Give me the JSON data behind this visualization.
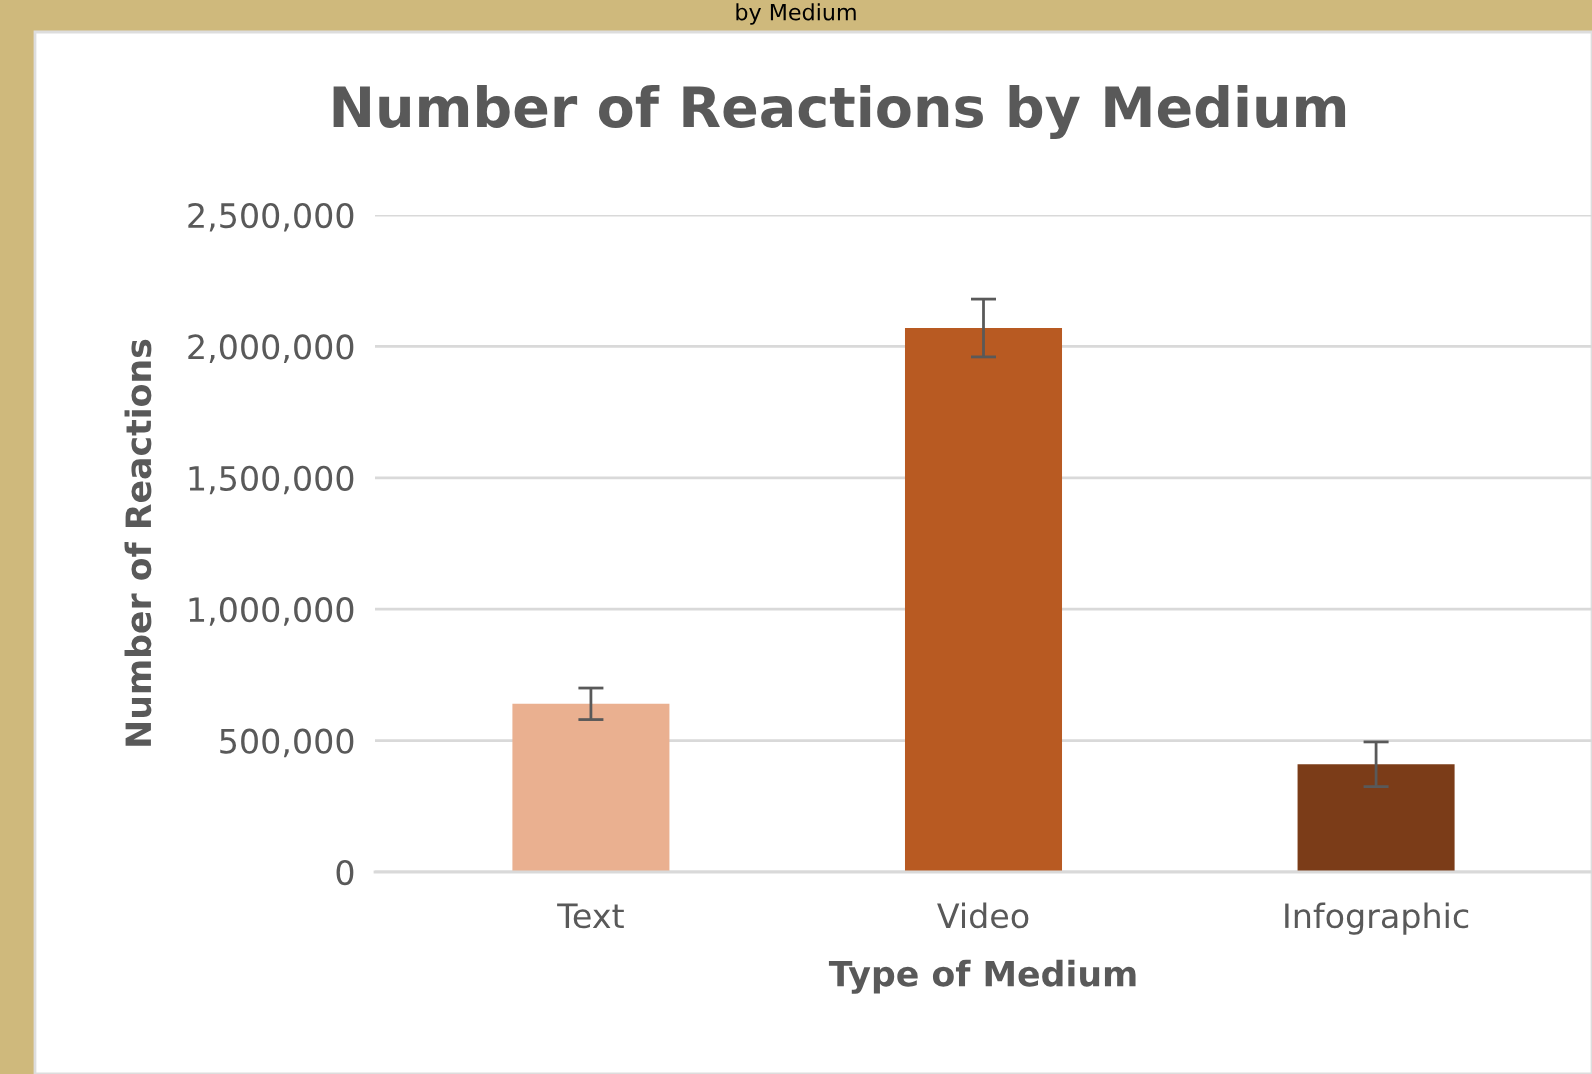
{
  "chart_data": {
    "type": "bar",
    "title": "Number of Reactions by Medium",
    "xlabel": "Type of Medium",
    "ylabel": "Number of Reactions",
    "annotations": [
      "by Medium"
    ],
    "categories": [
      "Text",
      "Video",
      "Infographic"
    ],
    "values": [
      640000,
      2070000,
      410000
    ],
    "errors": [
      60000,
      110000,
      85000
    ],
    "colors": [
      "#eab090",
      "#b85a22",
      "#7b3c18"
    ],
    "ylim": [
      0,
      2500000
    ],
    "yticks": [
      {
        "value": 0,
        "label": "0"
      },
      {
        "value": 500000,
        "label": "500,000"
      },
      {
        "value": 1000000,
        "label": "1,000,000"
      },
      {
        "value": 1500000,
        "label": "1,500,000"
      },
      {
        "value": 2000000,
        "label": "2,000,000"
      },
      {
        "value": 2500000,
        "label": "2,500,000"
      }
    ],
    "grid": "y",
    "legend": false
  }
}
